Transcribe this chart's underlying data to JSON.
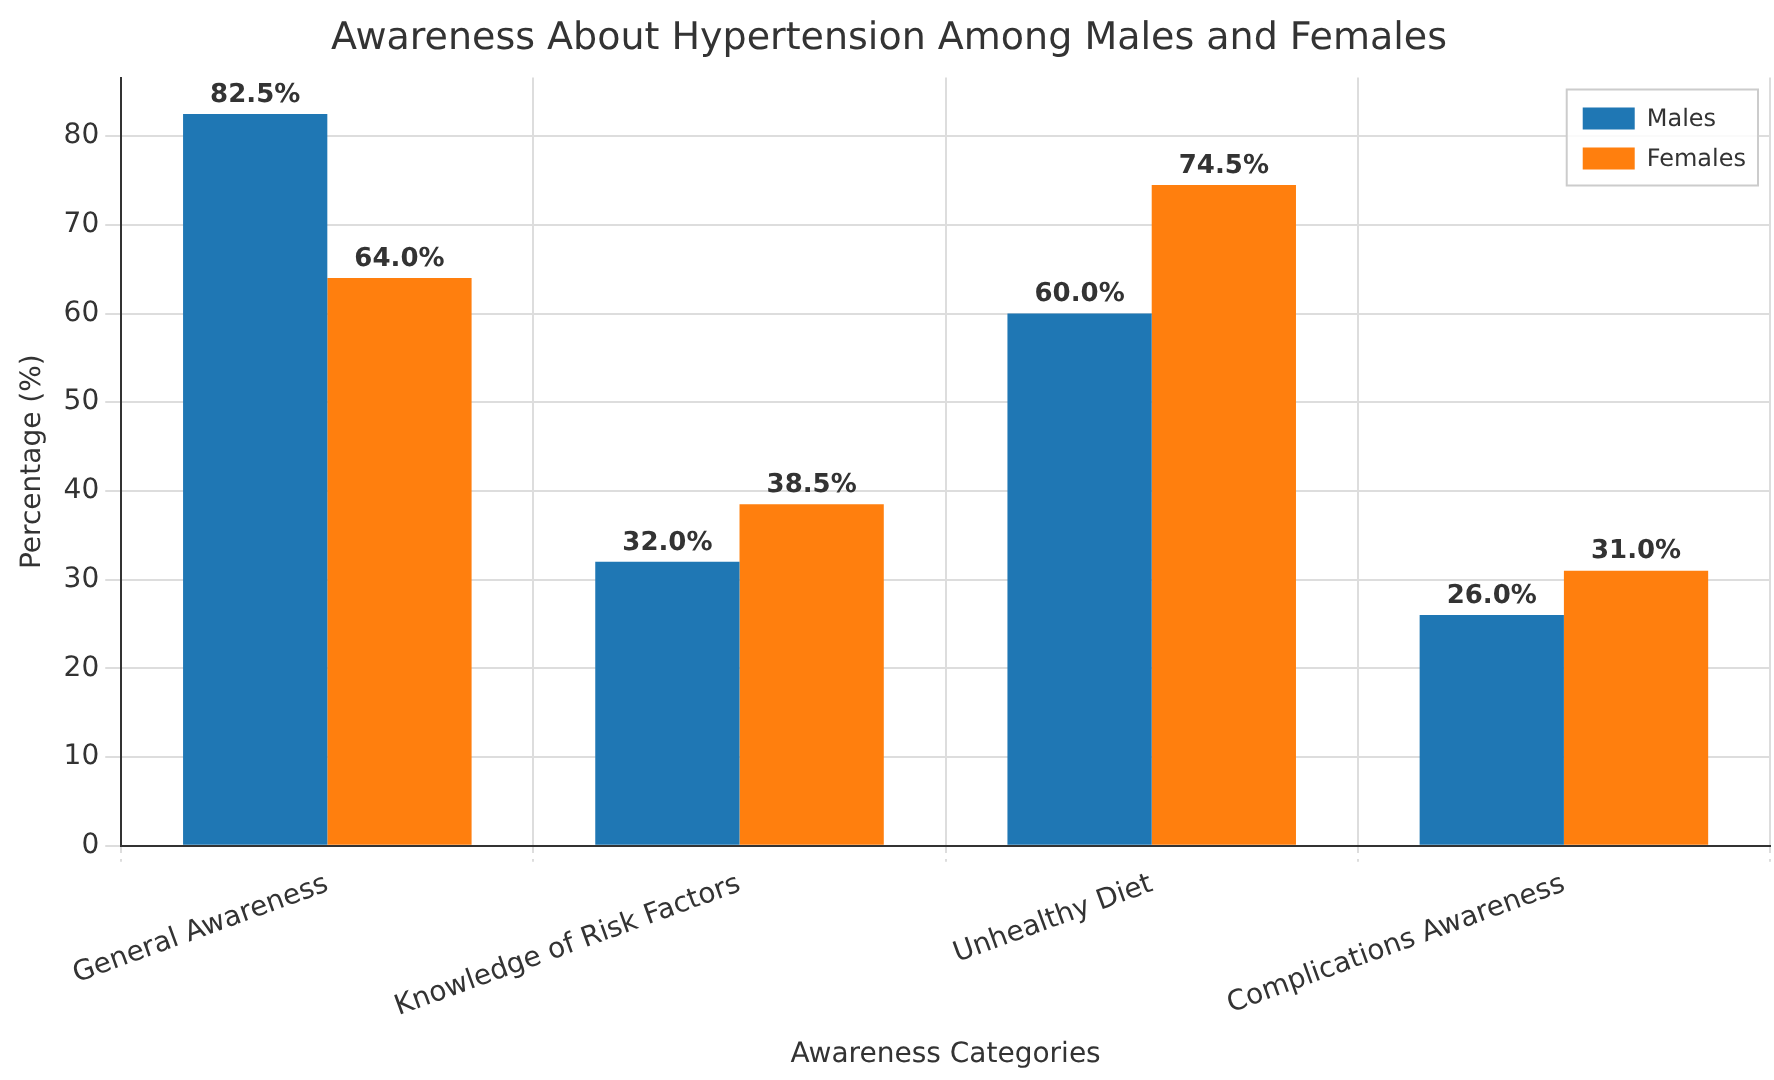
{
  "chart_data": {
    "type": "bar",
    "title": "Awareness About Hypertension Among Males and Females",
    "xlabel": "Awareness Categories",
    "ylabel": "Percentage (%)",
    "categories": [
      "General Awareness",
      "Knowledge of Risk Factors",
      "Unhealthy Diet",
      "Complications Awareness"
    ],
    "series": [
      {
        "name": "Males",
        "color": "#1f77b4",
        "values": [
          82.5,
          32.0,
          60.0,
          26.0
        ],
        "value_labels": [
          "82.5%",
          "32.0%",
          "60.0%",
          "26.0%"
        ]
      },
      {
        "name": "Females",
        "color": "#ff7f0e",
        "values": [
          64.0,
          38.5,
          74.5,
          31.0
        ],
        "value_labels": [
          "64.0%",
          "38.5%",
          "74.5%",
          "31.0%"
        ]
      }
    ],
    "ylim": [
      0,
      86.6
    ],
    "yticks": [
      0,
      10,
      20,
      30,
      40,
      50,
      60,
      70,
      80
    ],
    "grid": true,
    "legend": "top right"
  }
}
